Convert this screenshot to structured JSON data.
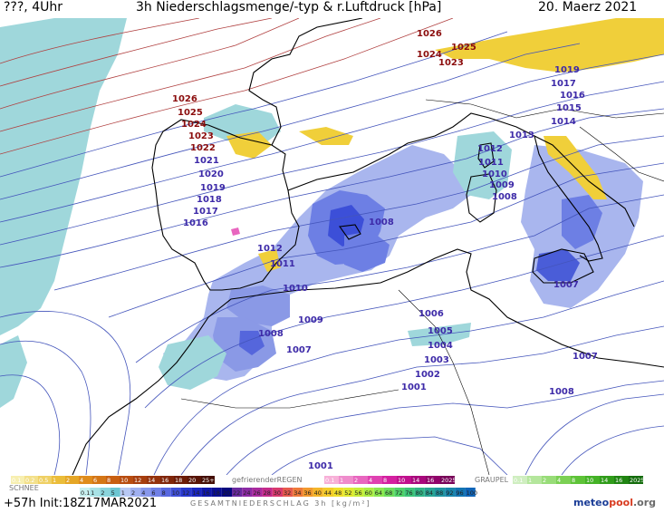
{
  "header": {
    "left_text": "???, 4Uhr",
    "title": "3h Niederschlagsmenge/-typ & r.Luftdruck [hPa]",
    "date": "20. Maerz 2021"
  },
  "footer": {
    "forecast": "+57h Init:18Z17MAR2021",
    "logo_part1": "meteo",
    "logo_part2": "pool",
    "logo_part3": ".org"
  },
  "legend": {
    "snow_label": "SCHNEE",
    "snow_values": [
      "0.1",
      "0.2",
      "0.5",
      "1",
      "2",
      "4",
      "6",
      "8",
      "10",
      "12",
      "14",
      "16",
      "18",
      "20",
      "25+"
    ],
    "freezing_rain_label": "gefrierenderREGEN",
    "freezing_rain_values": [
      "0.1",
      "1",
      "2",
      "4",
      "8",
      "10",
      "14",
      "16",
      "2025+"
    ],
    "graupel_label": "GRAUPEL",
    "graupel_values": [
      "0.1",
      "1",
      "2",
      "4",
      "8",
      "10",
      "14",
      "16",
      "2025+"
    ],
    "total_label": "GESAMTNIEDERSCHLAG 3h [kg/m²]",
    "total_values": [
      "0.1",
      "1",
      "2",
      "5",
      "1",
      "2",
      "4",
      "6",
      "8",
      "10",
      "12",
      "14",
      "16",
      "18",
      "20",
      "22",
      "24",
      "26",
      "28",
      "30",
      "32",
      "34",
      "36",
      "40",
      "44",
      "48",
      "52",
      "56",
      "60",
      "64",
      "68",
      "72",
      "76",
      "80",
      "84",
      "88",
      "92",
      "96",
      "100"
    ],
    "snow_colors": [
      "#f7efb0",
      "#f3e08a",
      "#efd064",
      "#ebbd3a",
      "#e5a626",
      "#df8c1c",
      "#d47616",
      "#c85f12",
      "#b84d10",
      "#a63e0e",
      "#94320c",
      "#80260a",
      "#6c1c08",
      "#581406",
      "#440e04"
    ],
    "freezing_colors": [
      "#f7b0d8",
      "#ef8ccc",
      "#e866bf",
      "#df41b1",
      "#d420a0",
      "#c0108e",
      "#a8087c",
      "#90046a",
      "#780258"
    ],
    "graupel_colors": [
      "#cfeec0",
      "#b4e69c",
      "#98dc78",
      "#7bd054",
      "#5ec338",
      "#44b226",
      "#309c1a",
      "#208412",
      "#146c0c"
    ],
    "total_colors": [
      "#c8f0f0",
      "#a8e2e6",
      "#8ad4dc",
      "#6cc6d2",
      "#b8c8f4",
      "#a0b0f0",
      "#8898ec",
      "#7080e6",
      "#5868e0",
      "#4050d8",
      "#2838ce",
      "#1a26c0",
      "#1018aa",
      "#0a0e94",
      "#06087e",
      "#6a2aa0",
      "#8c2aa4",
      "#aa2a9e",
      "#c42a8a",
      "#d83a6e",
      "#e65a4e",
      "#ee7a3a",
      "#f29a2e",
      "#f4b62a",
      "#f4cc2a",
      "#f0e02c",
      "#e0ea30",
      "#c8ee38",
      "#acee44",
      "#8ce850",
      "#6cde5c",
      "#50d26a",
      "#3cc478",
      "#30b486",
      "#28a494",
      "#2094a0",
      "#1884aa",
      "#1274b2",
      "#0e64b8"
    ]
  },
  "colors": {
    "isobar": "#4455bb",
    "isobar_label": "#3d2aa8",
    "isobar_label_high": "#8b0d0d",
    "coast": "#000000",
    "rain_light": "#9fd7db",
    "rain_mid": "#8a99e6",
    "rain_heavy": "#3c4fd8",
    "snow": "#f0cf3a"
  },
  "map": {
    "pressure_labels": [
      {
        "text": "1026",
        "x": 1.0,
        "y": 1.0,
        "high": true
      },
      {
        "text": "1025",
        "x": 1.0,
        "y": 1.0,
        "high": true
      },
      {
        "text": "1024",
        "x": 1.0,
        "y": 1.0,
        "high": true
      },
      {
        "text": "1023",
        "x": 1.0,
        "y": 1.0,
        "high": true
      },
      {
        "text": "1022",
        "x": 1.0,
        "y": 1.0,
        "high": true
      },
      {
        "text": "1021",
        "x": 1.0,
        "y": 1.0,
        "high": false
      },
      {
        "text": "1020",
        "x": 1.0,
        "y": 1.0,
        "high": false
      },
      {
        "text": "1019",
        "x": 1.0,
        "y": 1.0,
        "high": false
      },
      {
        "text": "1018",
        "x": 1.0,
        "y": 1.0,
        "high": false
      },
      {
        "text": "1017",
        "x": 1.0,
        "y": 1.0,
        "high": false
      },
      {
        "text": "1016",
        "x": 1.0,
        "y": 1.0,
        "high": false
      },
      {
        "text": "1026",
        "x": 1.0,
        "y": 1.0,
        "high": true
      },
      {
        "text": "1025",
        "x": 1.0,
        "y": 1.0,
        "high": true
      },
      {
        "text": "1024",
        "x": 1.0,
        "y": 1.0,
        "high": true
      },
      {
        "text": "1023",
        "x": 1.0,
        "y": 1.0,
        "high": true
      },
      {
        "text": "1019",
        "x": 1.0,
        "y": 1.0,
        "high": false
      },
      {
        "text": "1017",
        "x": 1.0,
        "y": 1.0,
        "high": false
      },
      {
        "text": "1016",
        "x": 1.0,
        "y": 1.0,
        "high": false
      },
      {
        "text": "1015",
        "x": 1.0,
        "y": 1.0,
        "high": false
      },
      {
        "text": "1014",
        "x": 1.0,
        "y": 1.0,
        "high": false
      },
      {
        "text": "1013",
        "x": 1.0,
        "y": 1.0,
        "high": false
      },
      {
        "text": "1012",
        "x": 1.0,
        "y": 1.0,
        "high": false
      },
      {
        "text": "1011",
        "x": 1.0,
        "y": 1.0,
        "high": false
      },
      {
        "text": "1010",
        "x": 1.0,
        "y": 1.0,
        "high": false
      },
      {
        "text": "1009",
        "x": 1.0,
        "y": 1.0,
        "high": false
      },
      {
        "text": "1008",
        "x": 1.0,
        "y": 1.0,
        "high": false
      },
      {
        "text": "1008",
        "x": 1.0,
        "y": 1.0,
        "high": false
      },
      {
        "text": "1012",
        "x": 1.0,
        "y": 1.0,
        "high": false
      },
      {
        "text": "1011",
        "x": 1.0,
        "y": 1.0,
        "high": false
      },
      {
        "text": "1010",
        "x": 1.0,
        "y": 1.0,
        "high": false
      },
      {
        "text": "1009",
        "x": 1.0,
        "y": 1.0,
        "high": false
      },
      {
        "text": "1008",
        "x": 1.0,
        "y": 1.0,
        "high": false
      },
      {
        "text": "1007",
        "x": 1.0,
        "y": 1.0,
        "high": false
      },
      {
        "text": "1006",
        "x": 1.0,
        "y": 1.0,
        "high": false
      },
      {
        "text": "1005",
        "x": 1.0,
        "y": 1.0,
        "high": false
      },
      {
        "text": "1004",
        "x": 1.0,
        "y": 1.0,
        "high": false
      },
      {
        "text": "1003",
        "x": 1.0,
        "y": 1.0,
        "high": false
      },
      {
        "text": "1002",
        "x": 1.0,
        "y": 1.0,
        "high": false
      },
      {
        "text": "1001",
        "x": 1.0,
        "y": 1.0,
        "high": false
      },
      {
        "text": "1007",
        "x": 1.0,
        "y": 1.0,
        "high": false
      },
      {
        "text": "1007",
        "x": 1.0,
        "y": 1.0,
        "high": false
      },
      {
        "text": "1008",
        "x": 1.0,
        "y": 1.0,
        "high": false
      },
      {
        "text": "1001",
        "x": 1.0,
        "y": 1.0,
        "high": false
      }
    ]
  }
}
